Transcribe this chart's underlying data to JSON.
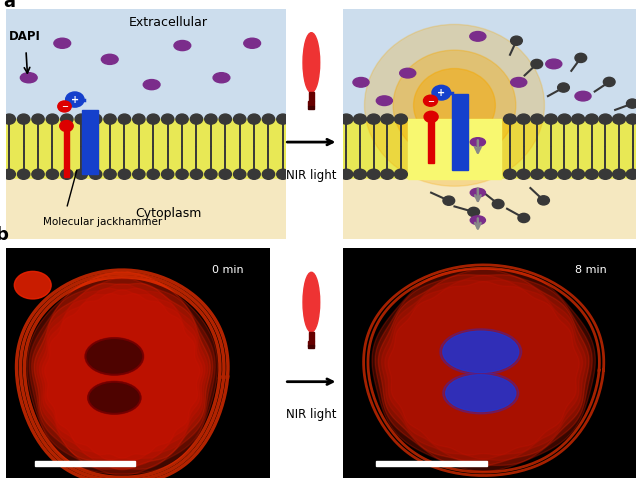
{
  "bg_color": "#ffffff",
  "extracellular_color": "#ccdded",
  "membrane_color": "#e8e855",
  "cytoplasm_color": "#f5e8c0",
  "purple_color": "#7B2D8B",
  "blue_color": "#1540cc",
  "red_color": "#dd0000",
  "dark_gray": "#383838",
  "gray_arrow": "#888888",
  "orange_glow": "#f5a800",
  "label_a": "a",
  "label_b": "b",
  "extracellular_text": "Extracellular",
  "cytoplasm_text": "Cytoplasm",
  "dapi_text": "DAPI",
  "jackhammer_text": "Molecular jackhammer",
  "nir_text": "NIR light",
  "min0_text": "0 min",
  "min8_text": "8 min"
}
